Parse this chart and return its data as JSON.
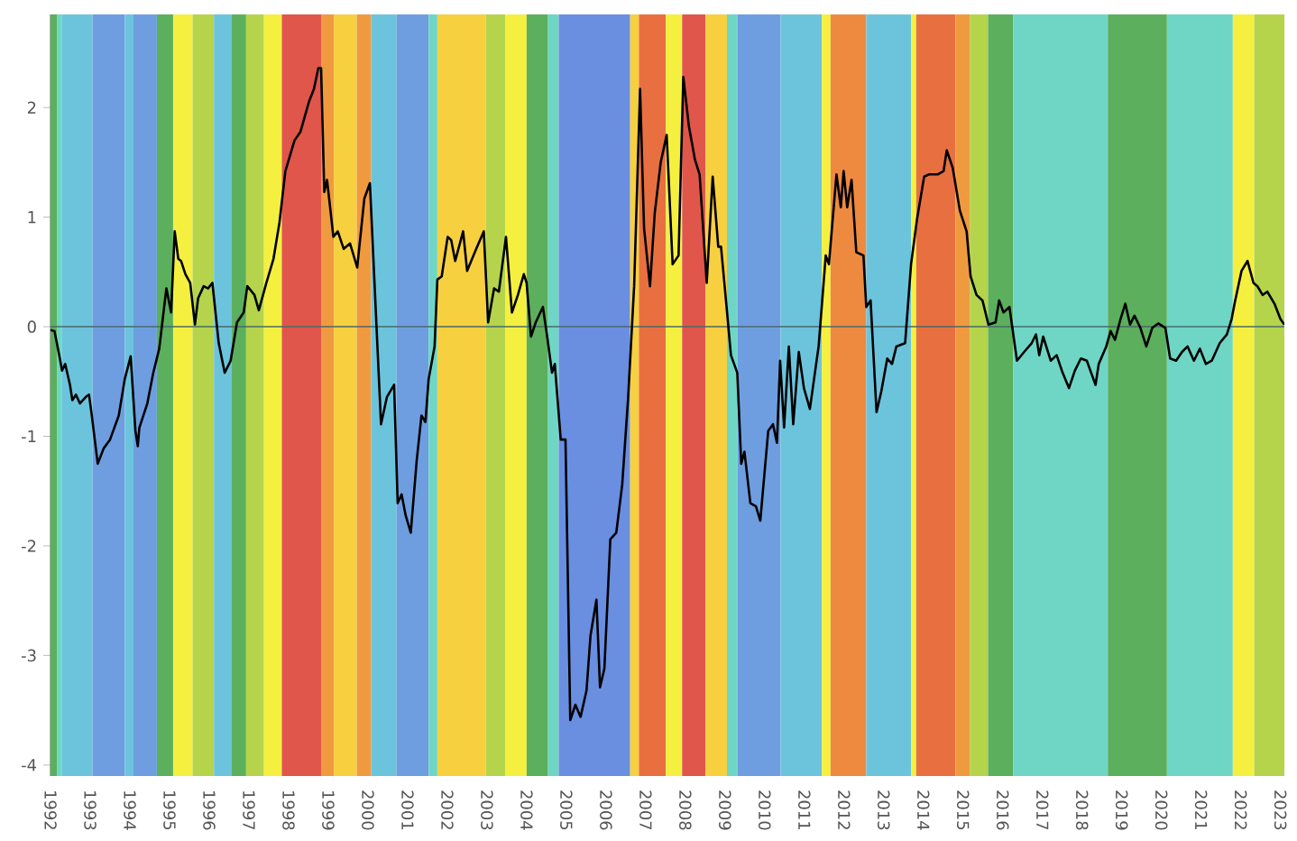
{
  "chart_data": {
    "type": "line",
    "color": "#000000",
    "x": [
      1992.0,
      1992.1,
      1992.22,
      1992.29,
      1992.37,
      1992.49,
      1992.55,
      1992.64,
      1992.74,
      1992.89,
      1992.97,
      1993.04,
      1993.19,
      1993.34,
      1993.5,
      1993.72,
      1993.87,
      1994.02,
      1994.14,
      1994.2,
      1994.24,
      1994.44,
      1994.59,
      1994.74,
      1994.92,
      1995.04,
      1995.13,
      1995.22,
      1995.29,
      1995.4,
      1995.52,
      1995.64,
      1995.72,
      1995.86,
      1995.97,
      1996.08,
      1996.24,
      1996.39,
      1996.54,
      1996.7,
      1996.87,
      1996.96,
      1997.14,
      1997.25,
      1997.44,
      1997.62,
      1997.77,
      1997.92,
      1998.15,
      1998.3,
      1998.52,
      1998.64,
      1998.75,
      1998.82,
      1998.9,
      1998.97,
      1999.13,
      1999.24,
      1999.39,
      1999.55,
      1999.73,
      1999.91,
      2000.05,
      2000.18,
      2000.33,
      2000.48,
      2000.66,
      2000.75,
      2000.85,
      2000.95,
      2001.08,
      2001.23,
      2001.35,
      2001.45,
      2001.53,
      2001.68,
      2001.75,
      2001.86,
      2002.01,
      2002.1,
      2002.2,
      2002.4,
      2002.5,
      2002.73,
      2002.92,
      2003.03,
      2003.18,
      2003.3,
      2003.48,
      2003.63,
      2003.78,
      2003.93,
      2004.0,
      2004.11,
      2004.23,
      2004.41,
      2004.53,
      2004.64,
      2004.71,
      2004.86,
      2004.98,
      2005.1,
      2005.23,
      2005.36,
      2005.51,
      2005.61,
      2005.76,
      2005.85,
      2005.96,
      2006.11,
      2006.26,
      2006.41,
      2006.56,
      2006.71,
      2006.86,
      2006.96,
      2007.11,
      2007.23,
      2007.38,
      2007.53,
      2007.68,
      2007.83,
      2007.95,
      2008.09,
      2008.24,
      2008.36,
      2008.54,
      2008.69,
      2008.83,
      2008.9,
      2009.04,
      2009.15,
      2009.31,
      2009.41,
      2009.49,
      2009.64,
      2009.78,
      2009.89,
      2010.09,
      2010.21,
      2010.31,
      2010.39,
      2010.49,
      2010.61,
      2010.72,
      2010.86,
      2010.99,
      2011.14,
      2011.36,
      2011.54,
      2011.62,
      2011.81,
      2011.92,
      2011.99,
      2012.08,
      2012.19,
      2012.31,
      2012.49,
      2012.56,
      2012.67,
      2012.82,
      2012.94,
      2013.09,
      2013.21,
      2013.32,
      2013.54,
      2013.69,
      2013.84,
      2014.02,
      2014.14,
      2014.36,
      2014.51,
      2014.59,
      2014.74,
      2014.92,
      2015.09,
      2015.19,
      2015.34,
      2015.49,
      2015.64,
      2015.82,
      2015.91,
      2016.02,
      2016.17,
      2016.36,
      2016.54,
      2016.73,
      2016.84,
      2016.92,
      2017.02,
      2017.21,
      2017.36,
      2017.51,
      2017.67,
      2017.82,
      2017.97,
      2018.12,
      2018.23,
      2018.34,
      2018.42,
      2018.61,
      2018.72,
      2018.83,
      2018.97,
      2019.09,
      2019.21,
      2019.32,
      2019.47,
      2019.62,
      2019.77,
      2019.92,
      2020.1,
      2020.22,
      2020.37,
      2020.52,
      2020.66,
      2020.82,
      2020.97,
      2021.12,
      2021.27,
      2021.47,
      2021.65,
      2021.77,
      2021.86,
      2022.02,
      2022.17,
      2022.32,
      2022.42,
      2022.55,
      2022.67,
      2022.85,
      2023.0,
      2023.1
    ],
    "values": [
      -0.03,
      -0.04,
      -0.26,
      -0.4,
      -0.34,
      -0.53,
      -0.67,
      -0.62,
      -0.7,
      -0.64,
      -0.62,
      -0.81,
      -1.25,
      -1.11,
      -1.03,
      -0.81,
      -0.48,
      -0.27,
      -0.95,
      -1.09,
      -0.92,
      -0.7,
      -0.42,
      -0.2,
      0.35,
      0.13,
      0.87,
      0.62,
      0.6,
      0.48,
      0.4,
      0.02,
      0.26,
      0.37,
      0.35,
      0.4,
      -0.15,
      -0.42,
      -0.31,
      0.04,
      0.13,
      0.37,
      0.29,
      0.15,
      0.4,
      0.62,
      0.95,
      1.42,
      1.7,
      1.78,
      2.06,
      2.17,
      2.36,
      2.36,
      1.23,
      1.34,
      0.82,
      0.87,
      0.71,
      0.76,
      0.54,
      1.17,
      1.31,
      0.29,
      -0.89,
      -0.64,
      -0.53,
      -1.61,
      -1.53,
      -1.72,
      -1.88,
      -1.22,
      -0.81,
      -0.87,
      -0.48,
      -0.18,
      0.43,
      0.46,
      0.82,
      0.79,
      0.6,
      0.87,
      0.51,
      0.71,
      0.87,
      0.04,
      0.35,
      0.32,
      0.82,
      0.13,
      0.29,
      0.48,
      0.4,
      -0.09,
      0.04,
      0.18,
      -0.12,
      -0.42,
      -0.34,
      -1.03,
      -1.03,
      -3.59,
      -3.45,
      -3.56,
      -3.32,
      -2.82,
      -2.49,
      -3.29,
      -3.12,
      -1.94,
      -1.88,
      -1.44,
      -0.64,
      0.37,
      2.17,
      0.9,
      0.37,
      1.04,
      1.5,
      1.75,
      0.57,
      0.65,
      2.28,
      1.83,
      1.53,
      1.39,
      0.4,
      1.37,
      0.73,
      0.73,
      0.18,
      -0.26,
      -0.42,
      -1.25,
      -1.14,
      -1.61,
      -1.64,
      -1.77,
      -0.95,
      -0.89,
      -1.06,
      -0.31,
      -0.92,
      -0.18,
      -0.89,
      -0.23,
      -0.56,
      -0.75,
      -0.18,
      0.65,
      0.57,
      1.39,
      1.09,
      1.42,
      1.09,
      1.34,
      0.68,
      0.65,
      0.18,
      0.24,
      -0.78,
      -0.59,
      -0.29,
      -0.34,
      -0.18,
      -0.15,
      0.57,
      0.98,
      1.37,
      1.39,
      1.39,
      1.42,
      1.61,
      1.45,
      1.06,
      0.87,
      0.46,
      0.29,
      0.24,
      0.02,
      0.04,
      0.24,
      0.13,
      0.18,
      -0.31,
      -0.23,
      -0.15,
      -0.07,
      -0.26,
      -0.09,
      -0.31,
      -0.26,
      -0.42,
      -0.56,
      -0.4,
      -0.29,
      -0.31,
      -0.42,
      -0.53,
      -0.34,
      -0.18,
      -0.04,
      -0.12,
      0.07,
      0.21,
      0.02,
      0.1,
      -0.01,
      -0.18,
      -0.01,
      0.03,
      -0.01,
      -0.29,
      -0.31,
      -0.23,
      -0.18,
      -0.31,
      -0.2,
      -0.34,
      -0.31,
      -0.15,
      -0.07,
      0.07,
      0.24,
      0.51,
      0.6,
      0.4,
      0.37,
      0.29,
      0.32,
      0.21,
      0.07,
      0.02
    ],
    "xlim": [
      1992.0,
      2023.1
    ],
    "xticks": [
      1992,
      1993,
      1994,
      1995,
      1996,
      1997,
      1998,
      1999,
      2000,
      2001,
      2002,
      2003,
      2004,
      2005,
      2006,
      2007,
      2008,
      2009,
      2010,
      2011,
      2012,
      2013,
      2014,
      2015,
      2016,
      2017,
      2018,
      2019,
      2020,
      2021,
      2022,
      2023
    ],
    "ylim": [
      -4.1,
      2.85
    ],
    "yticks": [
      -4,
      -3,
      -2,
      -1,
      0,
      1,
      2
    ],
    "ref_lines": [
      {
        "axis": "y",
        "value": 0,
        "color": "#4a6a6a"
      }
    ],
    "bands": [
      {
        "axis": "x",
        "from": 1992.0,
        "to": 1992.16,
        "color": "#5caf5c"
      },
      {
        "axis": "x",
        "from": 1992.16,
        "to": 1992.29,
        "color": "#6fd6c6"
      },
      {
        "axis": "x",
        "from": 1992.29,
        "to": 1993.06,
        "color": "#6cc4dc"
      },
      {
        "axis": "x",
        "from": 1993.06,
        "to": 1993.87,
        "color": "#6e9ee0"
      },
      {
        "axis": "x",
        "from": 1993.87,
        "to": 1994.09,
        "color": "#6cc4dc"
      },
      {
        "axis": "x",
        "from": 1994.09,
        "to": 1994.68,
        "color": "#6e9ee0"
      },
      {
        "axis": "x",
        "from": 1994.68,
        "to": 1995.09,
        "color": "#5caf5c"
      },
      {
        "axis": "x",
        "from": 1995.09,
        "to": 1995.58,
        "color": "#f5f040"
      },
      {
        "axis": "x",
        "from": 1995.58,
        "to": 1996.12,
        "color": "#b5d44c"
      },
      {
        "axis": "x",
        "from": 1996.12,
        "to": 1996.57,
        "color": "#6cc4dc"
      },
      {
        "axis": "x",
        "from": 1996.57,
        "to": 1996.93,
        "color": "#5caf5c"
      },
      {
        "axis": "x",
        "from": 1996.93,
        "to": 1997.38,
        "color": "#b5d44c"
      },
      {
        "axis": "x",
        "from": 1997.38,
        "to": 1997.83,
        "color": "#f5f040"
      },
      {
        "axis": "x",
        "from": 1997.83,
        "to": 1998.82,
        "color": "#e0564a"
      },
      {
        "axis": "x",
        "from": 1998.82,
        "to": 1999.14,
        "color": "#f09a40"
      },
      {
        "axis": "x",
        "from": 1999.14,
        "to": 1999.72,
        "color": "#f7d040"
      },
      {
        "axis": "x",
        "from": 1999.72,
        "to": 2000.08,
        "color": "#f09a40"
      },
      {
        "axis": "x",
        "from": 2000.08,
        "to": 2000.72,
        "color": "#6cc4dc"
      },
      {
        "axis": "x",
        "from": 2000.72,
        "to": 2001.53,
        "color": "#6e9ee0"
      },
      {
        "axis": "x",
        "from": 2001.53,
        "to": 2001.75,
        "color": "#6fd6c6"
      },
      {
        "axis": "x",
        "from": 2001.75,
        "to": 2002.97,
        "color": "#f7d040"
      },
      {
        "axis": "x",
        "from": 2002.97,
        "to": 2003.46,
        "color": "#b5d44c"
      },
      {
        "axis": "x",
        "from": 2003.46,
        "to": 2004.0,
        "color": "#f5f040"
      },
      {
        "axis": "x",
        "from": 2004.0,
        "to": 2004.54,
        "color": "#5caf5c"
      },
      {
        "axis": "x",
        "from": 2004.54,
        "to": 2004.81,
        "color": "#6fd6c6"
      },
      {
        "axis": "x",
        "from": 2004.81,
        "to": 2006.61,
        "color": "#6a8ee0"
      },
      {
        "axis": "x",
        "from": 2006.61,
        "to": 2006.83,
        "color": "#f7d040"
      },
      {
        "axis": "x",
        "from": 2006.83,
        "to": 2007.51,
        "color": "#e87040"
      },
      {
        "axis": "x",
        "from": 2007.51,
        "to": 2007.92,
        "color": "#f5f040"
      },
      {
        "axis": "x",
        "from": 2007.92,
        "to": 2008.51,
        "color": "#e0564a"
      },
      {
        "axis": "x",
        "from": 2008.51,
        "to": 2009.05,
        "color": "#f7d040"
      },
      {
        "axis": "x",
        "from": 2009.05,
        "to": 2009.32,
        "color": "#6fd6c6"
      },
      {
        "axis": "x",
        "from": 2009.32,
        "to": 2010.4,
        "color": "#6e9ee0"
      },
      {
        "axis": "x",
        "from": 2010.4,
        "to": 2011.44,
        "color": "#6cc4dc"
      },
      {
        "axis": "x",
        "from": 2011.44,
        "to": 2011.66,
        "color": "#f5f040"
      },
      {
        "axis": "x",
        "from": 2011.66,
        "to": 2012.56,
        "color": "#ee8a40"
      },
      {
        "axis": "x",
        "from": 2012.56,
        "to": 2013.69,
        "color": "#6cc4dc"
      },
      {
        "axis": "x",
        "from": 2013.69,
        "to": 2013.82,
        "color": "#f5f040"
      },
      {
        "axis": "x",
        "from": 2013.82,
        "to": 2014.81,
        "color": "#e87040"
      },
      {
        "axis": "x",
        "from": 2014.81,
        "to": 2015.17,
        "color": "#f09a40"
      },
      {
        "axis": "x",
        "from": 2015.17,
        "to": 2015.63,
        "color": "#b5d44c"
      },
      {
        "axis": "x",
        "from": 2015.63,
        "to": 2016.26,
        "color": "#5caf5c"
      },
      {
        "axis": "x",
        "from": 2016.26,
        "to": 2018.65,
        "color": "#6fd6c6"
      },
      {
        "axis": "x",
        "from": 2018.65,
        "to": 2020.14,
        "color": "#5caf5c"
      },
      {
        "axis": "x",
        "from": 2020.14,
        "to": 2021.8,
        "color": "#6fd6c6"
      },
      {
        "axis": "x",
        "from": 2021.8,
        "to": 2022.34,
        "color": "#f5f040"
      },
      {
        "axis": "x",
        "from": 2022.34,
        "to": 2023.1,
        "color": "#b5d44c"
      }
    ]
  }
}
